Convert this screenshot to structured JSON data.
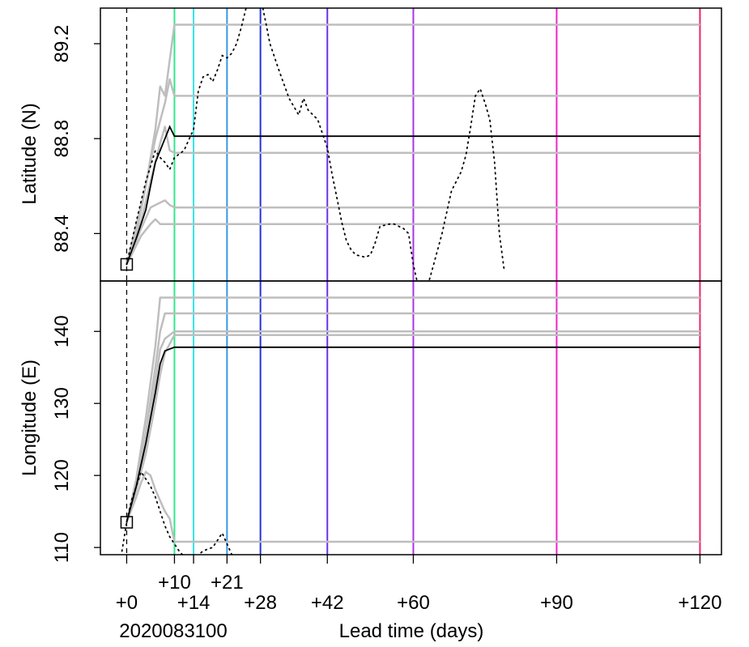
{
  "chart_data": [
    {
      "type": "line",
      "ylabel": "Latitude (N)",
      "ylim": [
        88.2,
        89.35
      ],
      "yticks": [
        88.4,
        88.8,
        89.2
      ],
      "ytick_labels": [
        "88.4",
        "88.8",
        "89.2"
      ],
      "start_point": {
        "x": 0,
        "y": 88.27
      },
      "ensemble_mean": {
        "name": "ensemble mean",
        "color": "#000000",
        "points": [
          [
            0,
            88.27
          ],
          [
            2,
            88.38
          ],
          [
            4,
            88.5
          ],
          [
            5,
            88.6
          ],
          [
            6,
            88.7
          ],
          [
            8,
            88.8
          ],
          [
            9,
            88.85
          ],
          [
            10,
            88.81
          ],
          [
            120,
            88.81
          ]
        ]
      },
      "members": [
        {
          "points": [
            [
              0,
              88.27
            ],
            [
              2,
              88.4
            ],
            [
              4,
              88.6
            ],
            [
              6,
              88.84
            ],
            [
              7,
              89.02
            ],
            [
              8,
              88.98
            ],
            [
              10,
              89.28
            ],
            [
              120,
              89.28
            ]
          ]
        },
        {
          "points": [
            [
              0,
              88.27
            ],
            [
              4,
              88.6
            ],
            [
              6,
              88.8
            ],
            [
              8,
              88.95
            ],
            [
              9,
              89.05
            ],
            [
              10,
              88.98
            ],
            [
              120,
              88.98
            ]
          ]
        },
        {
          "points": [
            [
              0,
              88.27
            ],
            [
              3,
              88.45
            ],
            [
              5,
              88.62
            ],
            [
              7,
              88.78
            ],
            [
              8,
              88.85
            ],
            [
              9,
              88.75
            ],
            [
              10,
              88.74
            ],
            [
              120,
              88.74
            ]
          ]
        },
        {
          "points": [
            [
              0,
              88.27
            ],
            [
              3,
              88.42
            ],
            [
              5,
              88.51
            ],
            [
              7,
              88.53
            ],
            [
              8,
              88.54
            ],
            [
              9,
              88.52
            ],
            [
              10,
              88.51
            ],
            [
              120,
              88.51
            ]
          ]
        },
        {
          "points": [
            [
              0,
              88.27
            ],
            [
              3,
              88.39
            ],
            [
              5,
              88.44
            ],
            [
              6,
              88.46
            ],
            [
              7,
              88.44
            ],
            [
              120,
              88.44
            ]
          ]
        }
      ],
      "observed": {
        "style": "dotted",
        "points": [
          [
            0,
            88.27
          ],
          [
            2,
            88.45
          ],
          [
            4,
            88.62
          ],
          [
            6,
            88.75
          ],
          [
            7,
            88.72
          ],
          [
            8,
            88.7
          ],
          [
            9,
            88.67
          ],
          [
            10,
            88.72
          ],
          [
            12,
            88.75
          ],
          [
            14,
            88.84
          ],
          [
            15,
            89.0
          ],
          [
            16,
            89.06
          ],
          [
            17,
            89.07
          ],
          [
            18,
            89.04
          ],
          [
            19,
            89.09
          ],
          [
            20,
            89.15
          ],
          [
            21,
            89.14
          ],
          [
            22,
            89.16
          ],
          [
            23,
            89.2
          ],
          [
            24,
            89.27
          ],
          [
            25,
            89.35
          ],
          [
            26,
            89.4
          ],
          [
            28,
            89.4
          ],
          [
            29,
            89.3
          ],
          [
            30,
            89.2
          ],
          [
            32,
            89.08
          ],
          [
            34,
            88.97
          ],
          [
            36,
            88.9
          ],
          [
            37,
            88.97
          ],
          [
            38,
            88.92
          ],
          [
            40,
            88.88
          ],
          [
            42,
            88.76
          ],
          [
            43,
            88.65
          ],
          [
            44,
            88.55
          ],
          [
            45,
            88.45
          ],
          [
            46,
            88.37
          ],
          [
            47,
            88.33
          ],
          [
            48,
            88.31
          ],
          [
            50,
            88.3
          ],
          [
            51,
            88.31
          ],
          [
            52,
            88.36
          ],
          [
            53,
            88.43
          ],
          [
            55,
            88.44
          ],
          [
            56,
            88.44
          ],
          [
            58,
            88.42
          ],
          [
            59,
            88.4
          ],
          [
            60,
            88.27
          ],
          [
            61,
            88.18
          ],
          [
            62,
            88.15
          ],
          [
            63,
            88.18
          ],
          [
            64,
            88.25
          ],
          [
            66,
            88.4
          ],
          [
            68,
            88.58
          ],
          [
            70,
            88.66
          ],
          [
            71,
            88.73
          ],
          [
            72,
            88.85
          ],
          [
            73,
            88.98
          ],
          [
            74,
            89.01
          ],
          [
            75,
            88.95
          ],
          [
            76,
            88.88
          ],
          [
            77,
            88.7
          ],
          [
            78,
            88.4
          ],
          [
            79,
            88.25
          ]
        ]
      }
    },
    {
      "type": "line",
      "ylabel": "Longitude (E)",
      "xlabel": "Lead time (days)",
      "ylim": [
        109.0,
        147.0
      ],
      "yticks": [
        110,
        120,
        130,
        140
      ],
      "ytick_labels": [
        "110",
        "120",
        "130",
        "140"
      ],
      "start_point": {
        "x": 0,
        "y": 113.5
      },
      "ensemble_mean": {
        "name": "ensemble mean",
        "color": "#000000",
        "points": [
          [
            0,
            113.5
          ],
          [
            2,
            118.5
          ],
          [
            4,
            124.5
          ],
          [
            6,
            131.5
          ],
          [
            7,
            135.5
          ],
          [
            8,
            137.3
          ],
          [
            10,
            137.8
          ],
          [
            120,
            137.8
          ]
        ]
      },
      "members": [
        {
          "points": [
            [
              0,
              113.5
            ],
            [
              2,
              119.5
            ],
            [
              4,
              128
            ],
            [
              6,
              138
            ],
            [
              7,
              144.7
            ],
            [
              120,
              144.7
            ]
          ]
        },
        {
          "points": [
            [
              0,
              113.5
            ],
            [
              2,
              119
            ],
            [
              4,
              126
            ],
            [
              6,
              135
            ],
            [
              7,
              140
            ],
            [
              8,
              142.5
            ],
            [
              120,
              142.5
            ]
          ]
        },
        {
          "points": [
            [
              0,
              113.5
            ],
            [
              2,
              118.5
            ],
            [
              4,
              124
            ],
            [
              6,
              133
            ],
            [
              7,
              137.5
            ],
            [
              8,
              139
            ],
            [
              10,
              140
            ],
            [
              120,
              140
            ]
          ]
        },
        {
          "points": [
            [
              0,
              113.5
            ],
            [
              2,
              118
            ],
            [
              4,
              123
            ],
            [
              6,
              130
            ],
            [
              7,
              134
            ],
            [
              8,
              137
            ],
            [
              10,
              139.5
            ],
            [
              120,
              139.5
            ]
          ]
        },
        {
          "points": [
            [
              0,
              113.5
            ],
            [
              2,
              117
            ],
            [
              3,
              119
            ],
            [
              4,
              120.5
            ],
            [
              5,
              120
            ],
            [
              6,
              118
            ],
            [
              7,
              116.5
            ],
            [
              8,
              115
            ],
            [
              9,
              114
            ],
            [
              10,
              110.8
            ],
            [
              120,
              110.8
            ]
          ]
        }
      ],
      "observed": {
        "style": "dotted",
        "points": [
          [
            -1,
            109.5
          ],
          [
            0,
            113.5
          ],
          [
            1,
            116.5
          ],
          [
            2,
            118.5
          ],
          [
            3,
            120.5
          ],
          [
            4,
            119.5
          ],
          [
            5,
            118.5
          ],
          [
            6,
            117
          ],
          [
            7,
            115
          ],
          [
            8,
            113
          ],
          [
            9,
            111.5
          ],
          [
            10,
            110.5
          ],
          [
            11,
            109.5
          ],
          [
            13,
            108
          ],
          [
            16,
            109.5
          ],
          [
            17,
            109.8
          ],
          [
            18,
            110
          ],
          [
            19,
            111
          ],
          [
            20,
            112
          ],
          [
            21,
            110.5
          ],
          [
            22,
            109
          ],
          [
            23,
            108
          ]
        ]
      }
    }
  ],
  "x_axis": {
    "xlim": [
      -5.5,
      124.5
    ],
    "ticks": [
      {
        "value": 0,
        "label": "+0",
        "row": 2
      },
      {
        "value": 10,
        "label": "+10",
        "row": 1
      },
      {
        "value": 14,
        "label": "+14",
        "row": 2
      },
      {
        "value": 21,
        "label": "+21",
        "row": 1
      },
      {
        "value": 28,
        "label": "+28",
        "row": 2
      },
      {
        "value": 42,
        "label": "+42",
        "row": 2
      },
      {
        "value": 60,
        "label": "+60",
        "row": 2
      },
      {
        "value": 90,
        "label": "+90",
        "row": 2
      },
      {
        "value": 120,
        "label": "+120",
        "row": 2
      }
    ],
    "start_label": "2020083100",
    "xlabel": "Lead time (days)"
  },
  "lead_lines": [
    {
      "x": 10,
      "color": "#33e68c"
    },
    {
      "x": 14,
      "color": "#33e6e6"
    },
    {
      "x": 21,
      "color": "#3399e6"
    },
    {
      "x": 28,
      "color": "#2233dd"
    },
    {
      "x": 42,
      "color": "#6633e6"
    },
    {
      "x": 60,
      "color": "#aa33e6"
    },
    {
      "x": 90,
      "color": "#ee22cc"
    },
    {
      "x": 120,
      "color": "#ee2266"
    }
  ],
  "colors": {
    "member": "#bebebe",
    "mean": "#000000",
    "observed": "#000000",
    "start_line": "#000000"
  }
}
